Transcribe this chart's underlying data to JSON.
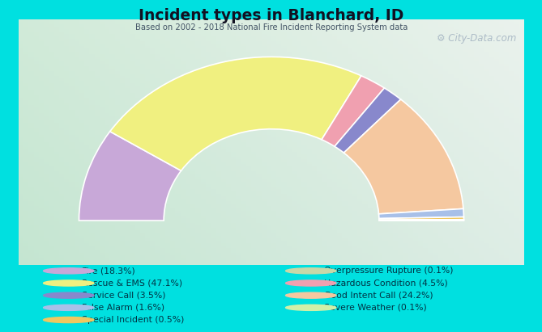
{
  "title": "Incident types in Blanchard, ID",
  "subtitle": "Based on 2002 - 2018 National Fire Incident Reporting System data",
  "watermark": "⚙ City-Data.com",
  "bg_color": "#00e0e0",
  "chart_bg_tl": "#d8edd8",
  "chart_bg_tr": "#e8f4f4",
  "chart_bg_bl": "#c8e8c8",
  "chart_bg_br": "#d0ecec",
  "segments": [
    {
      "label": "Fire (18.3%)",
      "value": 18.3,
      "color": "#c8a8d8"
    },
    {
      "label": "Rescue & EMS (47.1%)",
      "value": 47.1,
      "color": "#f0f080"
    },
    {
      "label": "Hazardous Condition (4.5%)",
      "value": 4.5,
      "color": "#f0a0b0"
    },
    {
      "label": "Service Call (3.5%)",
      "value": 3.5,
      "color": "#8888cc"
    },
    {
      "label": "Good Intent Call (24.2%)",
      "value": 24.2,
      "color": "#f5c8a0"
    },
    {
      "label": "False Alarm (1.6%)",
      "value": 1.6,
      "color": "#a8c0e8"
    },
    {
      "label": "Special Incident (0.5%)",
      "value": 0.5,
      "color": "#f0c860"
    },
    {
      "label": "Overpressure Rupture (0.1%)",
      "value": 0.1,
      "color": "#c8d8a8"
    },
    {
      "label": "Severe Weather (0.1%)",
      "value": 0.1,
      "color": "#d0f0a8"
    }
  ],
  "legend_order": [
    "Fire (18.3%)",
    "Rescue & EMS (47.1%)",
    "Service Call (3.5%)",
    "False Alarm (1.6%)",
    "Special Incident (0.5%)",
    "Overpressure Rupture (0.1%)",
    "Hazardous Condition (4.5%)",
    "Good Intent Call (24.2%)",
    "Severe Weather (0.1%)"
  ],
  "legend_colors": [
    "#c8a8d8",
    "#f0f080",
    "#8888cc",
    "#a8c0e8",
    "#f0c860",
    "#c8d8a8",
    "#f0a0b0",
    "#f5c8a0",
    "#d0f0a8"
  ],
  "figsize": [
    6.5,
    4.0
  ],
  "dpi": 100
}
